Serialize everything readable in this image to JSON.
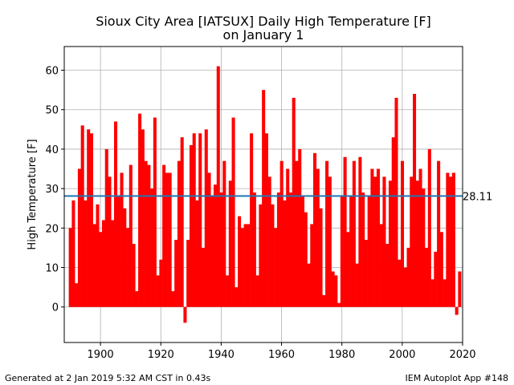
{
  "chart_data": {
    "type": "bar",
    "title": "Sioux City Area [IATSUX] Daily High Temperature [F]",
    "subtitle": "on January 1",
    "xlabel": "",
    "ylabel": "High Temperature [F]",
    "xlim": [
      1888,
      2020
    ],
    "ylim": [
      -9,
      66
    ],
    "xticks": [
      1900,
      1920,
      1940,
      1960,
      1980,
      2000,
      2020
    ],
    "yticks": [
      0,
      10,
      20,
      30,
      40,
      50,
      60
    ],
    "grid": true,
    "bar_color": "#ff0000",
    "average": {
      "value": 28.11,
      "label": "28.11",
      "color": "#1f77b4"
    },
    "x": [
      1890,
      1891,
      1892,
      1893,
      1894,
      1895,
      1896,
      1897,
      1898,
      1899,
      1900,
      1901,
      1902,
      1903,
      1904,
      1905,
      1906,
      1907,
      1908,
      1909,
      1910,
      1911,
      1912,
      1913,
      1914,
      1915,
      1916,
      1917,
      1918,
      1919,
      1920,
      1921,
      1922,
      1923,
      1924,
      1925,
      1926,
      1927,
      1928,
      1929,
      1930,
      1931,
      1932,
      1933,
      1934,
      1935,
      1936,
      1937,
      1938,
      1939,
      1940,
      1941,
      1942,
      1943,
      1944,
      1945,
      1946,
      1947,
      1948,
      1949,
      1950,
      1951,
      1952,
      1953,
      1954,
      1955,
      1956,
      1957,
      1958,
      1959,
      1960,
      1961,
      1962,
      1963,
      1964,
      1965,
      1966,
      1967,
      1968,
      1969,
      1970,
      1971,
      1972,
      1973,
      1974,
      1975,
      1976,
      1977,
      1978,
      1979,
      1980,
      1981,
      1982,
      1983,
      1984,
      1985,
      1986,
      1987,
      1988,
      1989,
      1990,
      1991,
      1992,
      1993,
      1994,
      1995,
      1996,
      1997,
      1998,
      1999,
      2000,
      2001,
      2002,
      2003,
      2004,
      2005,
      2006,
      2007,
      2008,
      2009,
      2010,
      2011,
      2012,
      2013,
      2014,
      2015,
      2016,
      2017,
      2018,
      2019
    ],
    "values": [
      20,
      27,
      6,
      35,
      46,
      27,
      45,
      44,
      21,
      26,
      19,
      22,
      40,
      33,
      22,
      47,
      28,
      34,
      25,
      20,
      36,
      16,
      4,
      49,
      45,
      37,
      36,
      30,
      48,
      8,
      12,
      36,
      34,
      34,
      4,
      17,
      37,
      43,
      -4,
      17,
      41,
      44,
      27,
      44,
      15,
      45,
      34,
      28,
      31,
      61,
      29,
      37,
      8,
      32,
      48,
      5,
      23,
      20,
      21,
      21,
      44,
      29,
      8,
      26,
      55,
      44,
      33,
      26,
      20,
      29,
      37,
      27,
      35,
      29,
      53,
      37,
      40,
      28,
      24,
      11,
      21,
      39,
      35,
      25,
      3,
      37,
      33,
      9,
      8,
      1,
      28,
      38,
      19,
      28,
      37,
      11,
      38,
      29,
      17,
      28,
      35,
      33,
      35,
      21,
      33,
      16,
      32,
      43,
      53,
      12,
      37,
      10,
      15,
      33,
      54,
      32,
      35,
      30,
      15,
      40,
      7,
      14,
      37,
      19,
      7,
      34,
      33,
      34,
      -2,
      9
    ]
  },
  "footer": {
    "left": "Generated at 2 Jan 2019 5:32 AM CST in 0.43s",
    "right": "IEM Autoplot App #148"
  }
}
